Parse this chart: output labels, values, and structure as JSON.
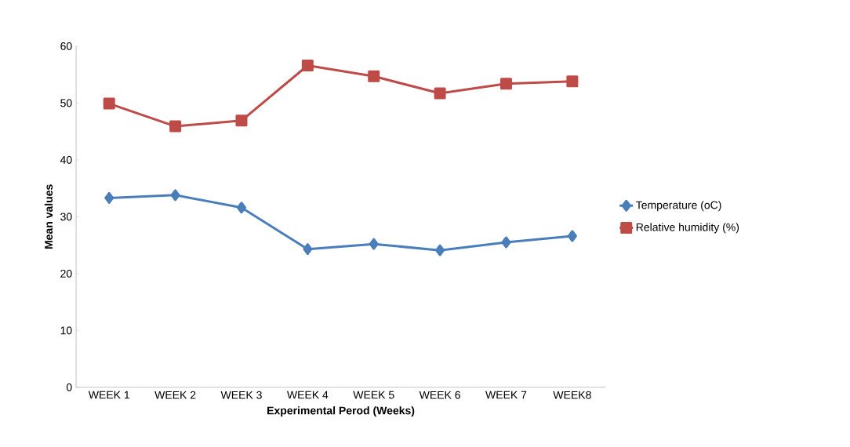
{
  "chart_data": {
    "type": "line",
    "xlabel": "Experimental Perod  (Weeks)",
    "ylabel": "Mean values",
    "categories": [
      "WEEK 1",
      "WEEK 2",
      "WEEK 3",
      "WEEK 4",
      "WEEK 5",
      "WEEK 6",
      "WEEK 7",
      "WEEK8"
    ],
    "series": [
      {
        "name": "Temperature (oC)",
        "color": "#4a7ebb",
        "marker": "diamond",
        "values": [
          33.3,
          33.8,
          31.6,
          24.3,
          25.2,
          24.1,
          25.5,
          26.6
        ]
      },
      {
        "name": "Relative humidity (%)",
        "color": "#be4b48",
        "marker": "square",
        "values": [
          49.9,
          45.9,
          46.9,
          56.6,
          54.7,
          51.7,
          53.4,
          53.8
        ]
      }
    ],
    "ylim": [
      0,
      60
    ],
    "yticks": [
      0,
      10,
      20,
      30,
      40,
      50,
      60
    ],
    "grid": false,
    "legend": "right"
  }
}
